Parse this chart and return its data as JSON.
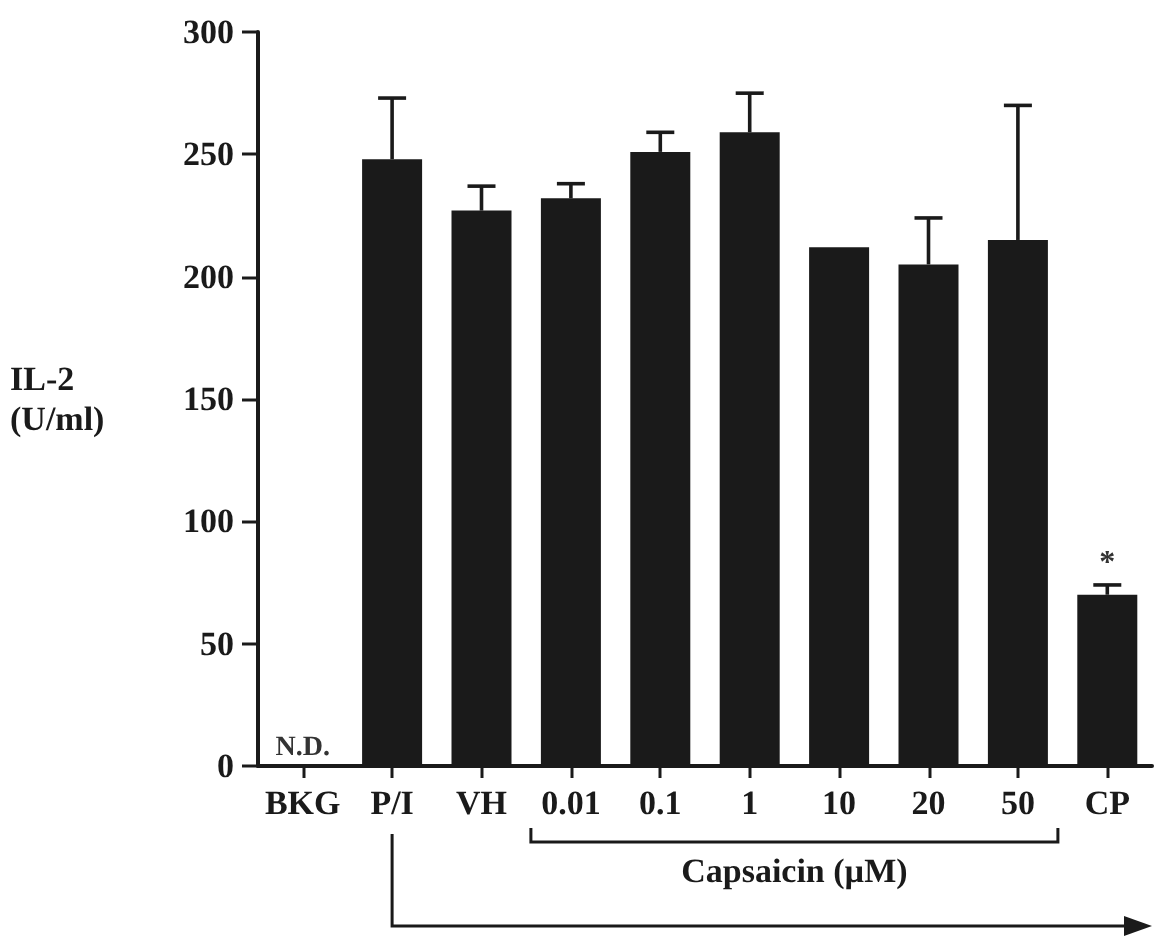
{
  "chart_data": {
    "type": "bar",
    "ylabel": "IL-2\n(U/ml)",
    "categories": [
      "BKG",
      "P/I",
      "VH",
      "0.01",
      "0.1",
      "1",
      "10",
      "20",
      "50",
      "CP"
    ],
    "values": [
      null,
      248,
      227,
      232,
      251,
      259,
      212,
      205,
      215,
      70
    ],
    "errors": [
      null,
      [
        248,
        273
      ],
      [
        227,
        237
      ],
      [
        232,
        238
      ],
      [
        251,
        259
      ],
      [
        259,
        275
      ],
      null,
      [
        205,
        224
      ],
      [
        215,
        270
      ],
      [
        70,
        74
      ]
    ],
    "color": "#1a1a1a",
    "ylim": [
      0,
      300
    ],
    "yticks": [
      0,
      50,
      100,
      150,
      200,
      250,
      300
    ],
    "grid": false,
    "annotations": [
      "N.D.",
      {
        "text": "*",
        "x": "CP",
        "y": 74
      },
      "Capsaicin (µM)"
    ]
  }
}
